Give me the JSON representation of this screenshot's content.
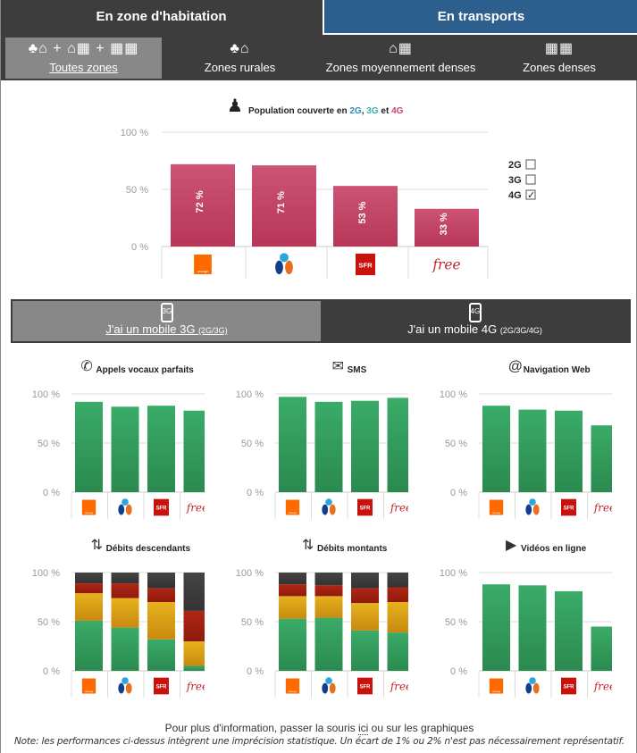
{
  "main_tabs": [
    {
      "label": "En zone d'habitation"
    },
    {
      "label": "En transports"
    }
  ],
  "zones": [
    {
      "icon": "tree-house-building-icon",
      "icon_text": "♣⌂ + ⌂▦ + ▦▦",
      "label": "Toutes zones",
      "active": true
    },
    {
      "icon": "tree-house-icon",
      "icon_text": "♣⌂",
      "label": "Zones rurales"
    },
    {
      "icon": "house-building-icon",
      "icon_text": "⌂▦",
      "label": "Zones moyennement denses"
    },
    {
      "icon": "buildings-icon",
      "icon_text": "▦▦",
      "label": "Zones denses"
    }
  ],
  "operators": [
    {
      "name": "orange",
      "logo_text": "orange"
    },
    {
      "name": "bouygues",
      "logo_text": ""
    },
    {
      "name": "sfr",
      "logo_text": "SFR"
    },
    {
      "name": "free",
      "logo_text": "free"
    }
  ],
  "mobile_tabs": [
    {
      "icon_text": "3G",
      "label": "J'ai un mobile 3G ",
      "sub": "(2G/3G)",
      "active": true
    },
    {
      "icon_text": "4G",
      "label": "J'ai un mobile 4G ",
      "sub": "(2G/3G/4G)"
    }
  ],
  "legend": [
    {
      "label": "2G",
      "checked": false
    },
    {
      "label": "3G",
      "checked": false
    },
    {
      "label": "4G",
      "checked": true
    }
  ],
  "colors": {
    "pink": "#c44866",
    "green": "#35a060",
    "yellow": "#dba619",
    "red": "#a3200f",
    "dark": "#3b3b3b",
    "t2g": "#2a8fb5",
    "t3g": "#3bb0a8",
    "t4g": "#c44866"
  },
  "footer": {
    "prefix": "Pour plus d'information, passer la souris ",
    "link": "ici",
    "suffix": " ou sur les graphiques",
    "note": "Note: les performances ci-dessus intègrent une imprécision statistique. Un écart de 1% ou 2% n'est pas nécessairement représentatif."
  },
  "chart_data": [
    {
      "id": "coverage",
      "type": "bar",
      "title_parts": [
        "Population couverte en ",
        "2G",
        ", ",
        "3G",
        " et ",
        "4G"
      ],
      "categories": [
        "orange",
        "bouygues",
        "sfr",
        "free"
      ],
      "values": [
        72,
        71,
        53,
        33
      ],
      "value_labels": [
        "72 %",
        "71 %",
        "53 %",
        "33 %"
      ],
      "yticks": [
        "0 %",
        "50 %",
        "100 %"
      ],
      "ylim": [
        0,
        100
      ]
    },
    {
      "id": "voice",
      "type": "bar",
      "icon": "phone-icon",
      "icon_text": "✆",
      "title": "Appels vocaux parfaits",
      "categories": [
        "orange",
        "bouygues",
        "sfr",
        "free"
      ],
      "values": [
        92,
        87,
        88,
        83
      ],
      "yticks": [
        "0 %",
        "50 %",
        "100 %"
      ],
      "ylim": [
        0,
        100
      ]
    },
    {
      "id": "sms",
      "type": "bar",
      "icon": "envelope-icon",
      "icon_text": "✉",
      "title": "SMS",
      "categories": [
        "orange",
        "bouygues",
        "sfr",
        "free"
      ],
      "values": [
        97,
        92,
        93,
        96
      ],
      "yticks": [
        "0 %",
        "50 %",
        "100 %"
      ],
      "ylim": [
        0,
        100
      ]
    },
    {
      "id": "web",
      "type": "bar",
      "icon": "at-icon",
      "icon_text": "@",
      "title": "Navigation Web",
      "categories": [
        "orange",
        "bouygues",
        "sfr",
        "free"
      ],
      "values": [
        88,
        84,
        83,
        68
      ],
      "yticks": [
        "0 %",
        "50 %",
        "100 %"
      ],
      "ylim": [
        0,
        100
      ]
    },
    {
      "id": "down",
      "type": "stacked-bar",
      "icon": "download-arrows-icon",
      "icon_text": "⇅",
      "title": "Débits descendants",
      "categories": [
        "orange",
        "bouygues",
        "sfr",
        "free"
      ],
      "series": [
        {
          "name": "good",
          "values": [
            51,
            44,
            32,
            5
          ]
        },
        {
          "name": "medium",
          "values": [
            28,
            30,
            38,
            25
          ]
        },
        {
          "name": "poor",
          "values": [
            10,
            15,
            14,
            31
          ]
        },
        {
          "name": "bad",
          "values": [
            11,
            11,
            16,
            39
          ]
        }
      ],
      "yticks": [
        "0 %",
        "50 %",
        "100 %"
      ],
      "ylim": [
        0,
        100
      ]
    },
    {
      "id": "up",
      "type": "stacked-bar",
      "icon": "upload-arrows-icon",
      "icon_text": "⇅",
      "title": "Débits montants",
      "categories": [
        "orange",
        "bouygues",
        "sfr",
        "free"
      ],
      "series": [
        {
          "name": "good",
          "values": [
            53,
            54,
            41,
            39
          ]
        },
        {
          "name": "medium",
          "values": [
            23,
            22,
            28,
            31
          ]
        },
        {
          "name": "poor",
          "values": [
            12,
            11,
            15,
            15
          ]
        },
        {
          "name": "bad",
          "values": [
            12,
            13,
            16,
            15
          ]
        }
      ],
      "yticks": [
        "0 %",
        "50 %",
        "100 %"
      ],
      "ylim": [
        0,
        100
      ]
    },
    {
      "id": "video",
      "type": "bar",
      "icon": "play-icon",
      "icon_text": "▶",
      "title": "Vidéos en ligne",
      "categories": [
        "orange",
        "bouygues",
        "sfr",
        "free"
      ],
      "values": [
        88,
        87,
        81,
        45
      ],
      "yticks": [
        "0 %",
        "50 %",
        "100 %"
      ],
      "ylim": [
        0,
        100
      ]
    }
  ]
}
